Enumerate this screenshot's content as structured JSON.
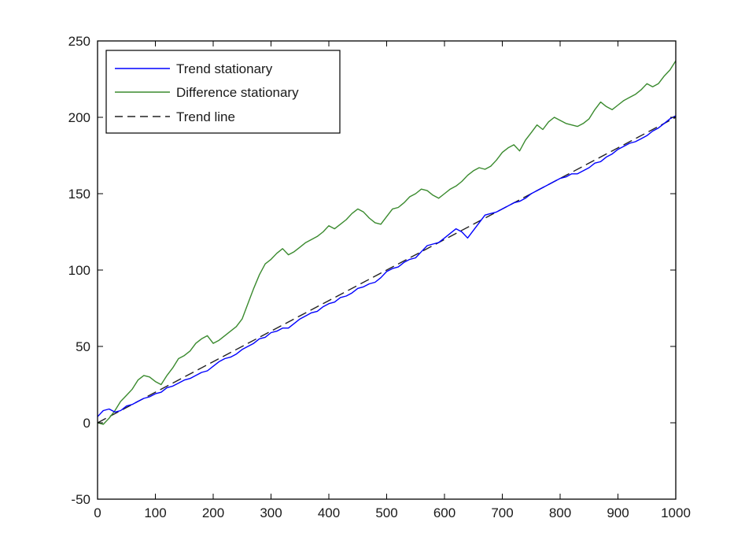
{
  "chart_data": {
    "type": "line",
    "title": "",
    "xlabel": "",
    "ylabel": "",
    "xlim": [
      0,
      1000
    ],
    "ylim": [
      -50,
      250
    ],
    "x_ticks": [
      0,
      100,
      200,
      300,
      400,
      500,
      600,
      700,
      800,
      900,
      1000
    ],
    "y_ticks": [
      -50,
      0,
      50,
      100,
      150,
      200,
      250
    ],
    "grid": false,
    "legend_position": "top-left",
    "series": [
      {
        "name": "Trend stationary",
        "color": "#0000ff",
        "style": "solid",
        "x": [
          0,
          10,
          20,
          30,
          40,
          50,
          60,
          70,
          80,
          90,
          100,
          110,
          120,
          130,
          140,
          150,
          160,
          170,
          180,
          190,
          200,
          210,
          220,
          230,
          240,
          250,
          260,
          270,
          280,
          290,
          300,
          310,
          320,
          330,
          340,
          350,
          360,
          370,
          380,
          390,
          400,
          410,
          420,
          430,
          440,
          450,
          460,
          470,
          480,
          490,
          500,
          510,
          520,
          530,
          540,
          550,
          560,
          570,
          580,
          590,
          600,
          610,
          620,
          630,
          640,
          650,
          660,
          670,
          680,
          690,
          700,
          710,
          720,
          730,
          740,
          750,
          760,
          770,
          780,
          790,
          800,
          810,
          820,
          830,
          840,
          850,
          860,
          870,
          880,
          890,
          900,
          910,
          920,
          930,
          940,
          950,
          960,
          970,
          980,
          990,
          1000
        ],
        "y": [
          4,
          8,
          9,
          7,
          8,
          11,
          12,
          14,
          16,
          17,
          19,
          20,
          23,
          24,
          26,
          28,
          29,
          31,
          33,
          34,
          37,
          40,
          42,
          43,
          45,
          48,
          50,
          52,
          55,
          56,
          59,
          60,
          62,
          62,
          65,
          68,
          70,
          72,
          73,
          76,
          78,
          79,
          82,
          83,
          85,
          88,
          89,
          91,
          92,
          95,
          99,
          101,
          102,
          105,
          107,
          108,
          112,
          116,
          117,
          118,
          121,
          124,
          127,
          125,
          121,
          126,
          131,
          136,
          137,
          138,
          140,
          142,
          144,
          145,
          147,
          150,
          152,
          154,
          156,
          158,
          160,
          161,
          163,
          163,
          165,
          167,
          170,
          171,
          174,
          176,
          179,
          181,
          183,
          184,
          186,
          188,
          191,
          193,
          196,
          199,
          201
        ]
      },
      {
        "name": "Difference stationary",
        "color": "#3a8a2e",
        "style": "solid",
        "x": [
          0,
          10,
          20,
          30,
          40,
          50,
          60,
          70,
          80,
          90,
          100,
          110,
          120,
          130,
          140,
          150,
          160,
          170,
          180,
          190,
          200,
          210,
          220,
          230,
          240,
          250,
          260,
          270,
          280,
          290,
          300,
          310,
          320,
          330,
          340,
          350,
          360,
          370,
          380,
          390,
          400,
          410,
          420,
          430,
          440,
          450,
          460,
          470,
          480,
          490,
          500,
          510,
          520,
          530,
          540,
          550,
          560,
          570,
          580,
          590,
          600,
          610,
          620,
          630,
          640,
          650,
          660,
          670,
          680,
          690,
          700,
          710,
          720,
          730,
          740,
          750,
          760,
          770,
          780,
          790,
          800,
          810,
          820,
          830,
          840,
          850,
          860,
          870,
          880,
          890,
          900,
          910,
          920,
          930,
          940,
          950,
          960,
          970,
          980,
          990,
          1000
        ],
        "y": [
          0,
          -1,
          3,
          8,
          14,
          18,
          22,
          28,
          31,
          30,
          27,
          25,
          31,
          36,
          42,
          44,
          47,
          52,
          55,
          57,
          52,
          54,
          57,
          60,
          63,
          68,
          78,
          88,
          97,
          104,
          107,
          111,
          114,
          110,
          112,
          115,
          118,
          120,
          122,
          125,
          129,
          127,
          130,
          133,
          137,
          140,
          138,
          134,
          131,
          130,
          135,
          140,
          141,
          144,
          148,
          150,
          153,
          152,
          149,
          147,
          150,
          153,
          155,
          158,
          162,
          165,
          167,
          166,
          168,
          172,
          177,
          180,
          182,
          178,
          185,
          190,
          195,
          192,
          197,
          200,
          198,
          196,
          195,
          194,
          196,
          199,
          205,
          210,
          207,
          205,
          208,
          211,
          213,
          215,
          218,
          222,
          220,
          222,
          227,
          231,
          237
        ]
      },
      {
        "name": "Trend line",
        "color": "#222222",
        "style": "dashed",
        "x": [
          0,
          1000
        ],
        "y": [
          0,
          200
        ]
      }
    ]
  }
}
